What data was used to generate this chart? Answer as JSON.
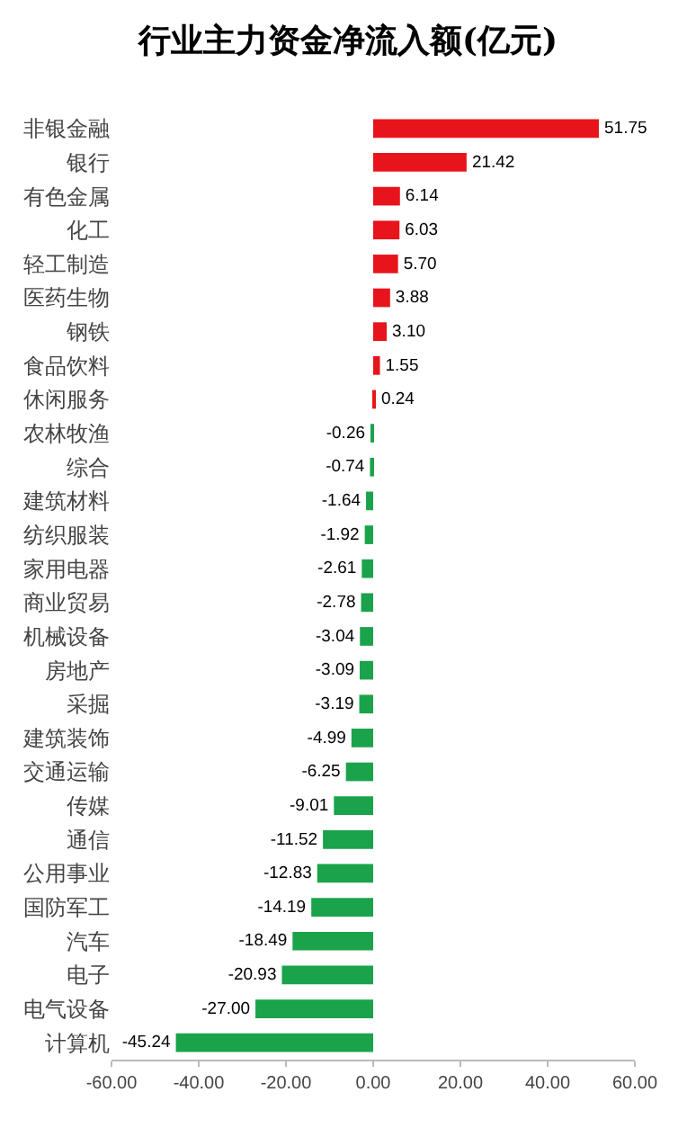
{
  "chart_data": {
    "type": "bar",
    "orientation": "horizontal",
    "title": "行业主力资金净流入额(亿元)",
    "categories": [
      "非银金融",
      "银行",
      "有色金属",
      "化工",
      "轻工制造",
      "医药生物",
      "钢铁",
      "食品饮料",
      "休闲服务",
      "农林牧渔",
      "综合",
      "建筑材料",
      "纺织服装",
      "家用电器",
      "商业贸易",
      "机械设备",
      "房地产",
      "采掘",
      "建筑装饰",
      "交通运输",
      "传媒",
      "通信",
      "公用事业",
      "国防军工",
      "汽车",
      "电子",
      "电气设备",
      "计算机"
    ],
    "values": [
      51.75,
      21.42,
      6.14,
      6.03,
      5.7,
      3.88,
      3.1,
      1.55,
      0.24,
      -0.26,
      -0.74,
      -1.64,
      -1.92,
      -2.61,
      -2.78,
      -3.04,
      -3.09,
      -3.19,
      -4.99,
      -6.25,
      -9.01,
      -11.52,
      -12.83,
      -14.19,
      -18.49,
      -20.93,
      -27.0,
      -45.24
    ],
    "value_labels": [
      "51.75",
      "21.42",
      "6.14",
      "6.03",
      "5.70",
      "3.88",
      "3.10",
      "1.55",
      "0.24",
      "-0.26",
      "-0.74",
      "-1.64",
      "-1.92",
      "-2.61",
      "-2.78",
      "-3.04",
      "-3.09",
      "-3.19",
      "-4.99",
      "-6.25",
      "-9.01",
      "-11.52",
      "-12.83",
      "-14.19",
      "-18.49",
      "-20.93",
      "-27.00",
      "-45.24"
    ],
    "colors": [
      "#e8141b",
      "#e8141b",
      "#e8141b",
      "#e8141b",
      "#e8141b",
      "#e8141b",
      "#e8141b",
      "#e8141b",
      "#e8141b",
      "#1aa34a",
      "#1aa34a",
      "#1aa34a",
      "#1aa34a",
      "#1aa34a",
      "#1aa34a",
      "#1aa34a",
      "#1aa34a",
      "#1aa34a",
      "#1aa34a",
      "#1aa34a",
      "#1aa34a",
      "#1aa34a",
      "#1aa34a",
      "#1aa34a",
      "#1aa34a",
      "#1aa34a",
      "#1aa34a",
      "#1aa34a"
    ],
    "xlim": [
      -60,
      60
    ],
    "xticks": [
      {
        "value": -60,
        "label": "-60.00"
      },
      {
        "value": -40,
        "label": "-40.00"
      },
      {
        "value": -20,
        "label": "-20.00"
      },
      {
        "value": 0,
        "label": "0.00"
      },
      {
        "value": 20,
        "label": "20.00"
      },
      {
        "value": 40,
        "label": "40.00"
      },
      {
        "value": 60,
        "label": "60.00"
      }
    ],
    "grid": false
  }
}
